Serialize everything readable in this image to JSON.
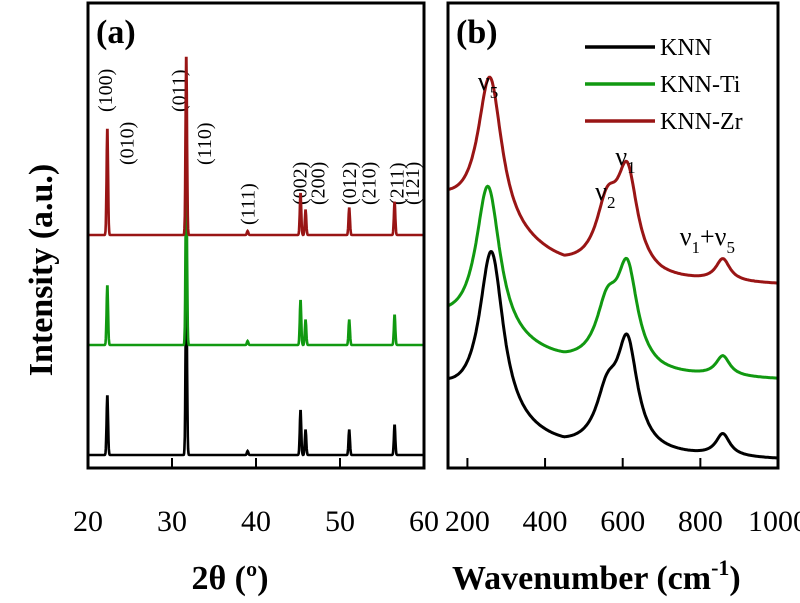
{
  "chart_data": [
    {
      "type": "line",
      "panel_label": "(a)",
      "xlabel": "2θ (º)",
      "ylabel": "Intensity (a.u.)",
      "xlim": [
        20,
        60
      ],
      "xticks": [
        20,
        30,
        40,
        50,
        60
      ],
      "grid": false,
      "series": [
        {
          "color": "#000000",
          "offset": 0,
          "peaks": [
            [
              22.3,
              60
            ],
            [
              31.7,
              175
            ],
            [
              39.0,
              4
            ],
            [
              45.3,
              45
            ],
            [
              45.9,
              25
            ],
            [
              51.1,
              25
            ],
            [
              56.5,
              30
            ]
          ]
        },
        {
          "color": "#119911",
          "offset": 110,
          "peaks": [
            [
              22.3,
              60
            ],
            [
              31.7,
              175
            ],
            [
              39.0,
              4
            ],
            [
              45.3,
              45
            ],
            [
              45.9,
              25
            ],
            [
              51.1,
              25
            ],
            [
              56.5,
              30
            ]
          ]
        },
        {
          "color": "#991515",
          "offset": 220,
          "peaks": [
            [
              22.3,
              108
            ],
            [
              31.7,
              182
            ],
            [
              39.0,
              4
            ],
            [
              45.3,
              42
            ],
            [
              45.9,
              25
            ],
            [
              51.1,
              27
            ],
            [
              56.5,
              33
            ]
          ]
        }
      ],
      "annotations": [
        {
          "text": "(100)",
          "x": 22.0
        },
        {
          "text": "(010)",
          "x": 24.6
        },
        {
          "text": "(011)",
          "x": 30.8
        },
        {
          "text": "(110)",
          "x": 33.8
        },
        {
          "text": "(111)",
          "x": 39.0
        },
        {
          "text": "(002)",
          "x": 45.2
        },
        {
          "text": "(200)",
          "x": 47.3
        },
        {
          "text": "(012)",
          "x": 51.1
        },
        {
          "text": "(210)",
          "x": 53.4
        },
        {
          "text": "(211)",
          "x": 56.7
        },
        {
          "text": "(121)",
          "x": 58.6
        }
      ]
    },
    {
      "type": "line",
      "panel_label": "(b)",
      "xlabel": "Wavenumber (cm",
      "xlabel_superscript": "-1",
      "xlabel_close": ")",
      "xlim": [
        150,
        1000
      ],
      "xticks": [
        200,
        400,
        600,
        800,
        1000
      ],
      "grid": false,
      "legend": {
        "position": "top-right",
        "entries": [
          {
            "label": "KNN",
            "color": "#000000"
          },
          {
            "label": "KNN-Ti",
            "color": "#119911"
          },
          {
            "label": "KNN-Zr",
            "color": "#991515"
          }
        ]
      },
      "series": [
        {
          "name": "KNN",
          "color": "#000000",
          "offset": 0,
          "baseline": [
            [
              150,
              63
            ],
            [
              300,
              28
            ],
            [
              450,
              8
            ],
            [
              700,
              3
            ],
            [
              1000,
              0
            ]
          ],
          "peaks": [
            [
              262,
              170,
              38
            ],
            [
              560,
              50,
              35
            ],
            [
              612,
              103,
              32
            ],
            [
              858,
              22,
              22
            ]
          ]
        },
        {
          "name": "KNN-Ti",
          "color": "#119911",
          "offset": 80,
          "baseline": [
            [
              150,
              55
            ],
            [
              300,
              32
            ],
            [
              450,
              14
            ],
            [
              700,
              3
            ],
            [
              1000,
              0
            ]
          ],
          "peaks": [
            [
              253,
              153,
              38
            ],
            [
              560,
              55,
              35
            ],
            [
              612,
              95,
              32
            ],
            [
              858,
              20,
              22
            ]
          ]
        },
        {
          "name": "KNN-Zr",
          "color": "#991515",
          "offset": 175,
          "baseline": [
            [
              150,
              78
            ],
            [
              300,
              45
            ],
            [
              450,
              15
            ],
            [
              700,
              3
            ],
            [
              1000,
              0
            ]
          ],
          "peaks": [
            [
              258,
              152,
              38
            ],
            [
              560,
              60,
              35
            ],
            [
              612,
              95,
              32
            ],
            [
              858,
              22,
              22
            ]
          ]
        }
      ],
      "mode_labels": [
        {
          "main": "ν",
          "sub": "5",
          "x": 258
        },
        {
          "main": "ν",
          "sub": "2",
          "x": 560
        },
        {
          "main": "ν",
          "sub": "1",
          "x": 612
        },
        {
          "main": "ν",
          "sub": "1",
          "plus": "+ν",
          "sub2": "5",
          "x": 850
        }
      ]
    }
  ]
}
